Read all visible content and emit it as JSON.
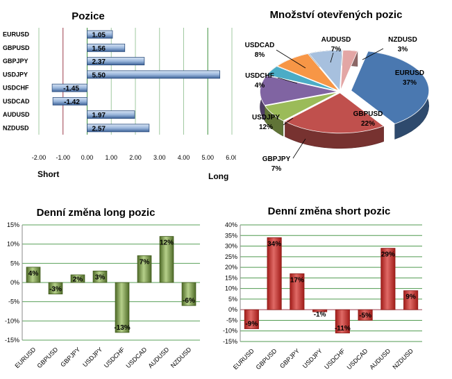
{
  "chart_data": [
    {
      "type": "bar",
      "orientation": "horizontal",
      "title": "Pozice",
      "categories": [
        "EURUSD",
        "GBPUSD",
        "GBPJPY",
        "USDJPY",
        "USDCHF",
        "USDCAD",
        "AUDUSD",
        "NZDUSD"
      ],
      "values": [
        1.05,
        1.56,
        2.37,
        5.5,
        -1.45,
        -1.42,
        1.97,
        2.57
      ],
      "value_labels": [
        "1.05",
        "1.56",
        "2.37",
        "5.50",
        "-1.45",
        "-1.42",
        "1.97",
        "2.57"
      ],
      "xlim": [
        -2,
        6
      ],
      "xticks": [
        "-2.00",
        "-1.00",
        "0.00",
        "1.00",
        "2.00",
        "3.00",
        "4.00",
        "5.00",
        "6.00"
      ],
      "left_label": "Short",
      "right_label": "Long",
      "colors": {
        "bar": "#7a9cc9",
        "bar_edge": "#2e4f7e",
        "grid": "#9fc89f",
        "ref_line": "#9b3b4a"
      }
    },
    {
      "type": "pie",
      "title": "Množství otevřených pozic",
      "slices": [
        {
          "name": "EURUSD",
          "value": 37,
          "label": "37%",
          "color": "#4a78b0"
        },
        {
          "name": "GBPUSD",
          "value": 22,
          "label": "22%",
          "color": "#c0504d"
        },
        {
          "name": "GBPJPY",
          "value": 7,
          "label": "7%",
          "color": "#9bbb59"
        },
        {
          "name": "USDJPY",
          "value": 12,
          "label": "12%",
          "color": "#8064a2"
        },
        {
          "name": "USDCHF",
          "value": 4,
          "label": "4%",
          "color": "#4bacc6"
        },
        {
          "name": "USDCAD",
          "value": 8,
          "label": "8%",
          "color": "#f79646"
        },
        {
          "name": "AUDUSD",
          "value": 7,
          "label": "7%",
          "color": "#a7c0de"
        },
        {
          "name": "NZDUSD",
          "value": 3,
          "label": "3%",
          "color": "#e3a6a5"
        }
      ]
    },
    {
      "type": "bar",
      "title": "Denní změna long pozic",
      "categories": [
        "EURUSD",
        "GBPUSD",
        "GBPJPY",
        "USDJPY",
        "USDCHF",
        "USDCAD",
        "AUDUSD",
        "NZDUSD"
      ],
      "values": [
        4,
        -3,
        2,
        3,
        -13,
        7,
        12,
        -6
      ],
      "value_labels": [
        "4%",
        "-3%",
        "2%",
        "3%",
        "-13%",
        "7%",
        "12%",
        "-6%"
      ],
      "ylim": [
        -15,
        15
      ],
      "yticks": [
        "-15%",
        "-10%",
        "-5%",
        "0%",
        "5%",
        "10%",
        "15%"
      ],
      "colors": {
        "bar": "#6f8f3c",
        "bar_edge": "#3f5a1c",
        "grid": "#5aa05a"
      }
    },
    {
      "type": "bar",
      "title": "Denní změna short pozic",
      "categories": [
        "EURUSD",
        "GBPUSD",
        "GBPJPY",
        "USDJPY",
        "USDCHF",
        "USDCAD",
        "AUDUSD",
        "NZDUSD"
      ],
      "values": [
        -9,
        34,
        17,
        -1,
        -11,
        -5,
        29,
        9
      ],
      "value_labels": [
        "-9%",
        "34%",
        "17%",
        "-1%",
        "-11%",
        "-5%",
        "29%",
        "9%"
      ],
      "ylim": [
        -15,
        40
      ],
      "yticks": [
        "-15%",
        "-10%",
        "-5%",
        "0%",
        "5%",
        "10%",
        "15%",
        "20%",
        "25%",
        "30%",
        "35%",
        "40%"
      ],
      "colors": {
        "bar": "#c9302c",
        "bar_edge": "#8e1e1b",
        "grid": "#4f9a4f",
        "zero": "#9b3b4a"
      }
    }
  ]
}
